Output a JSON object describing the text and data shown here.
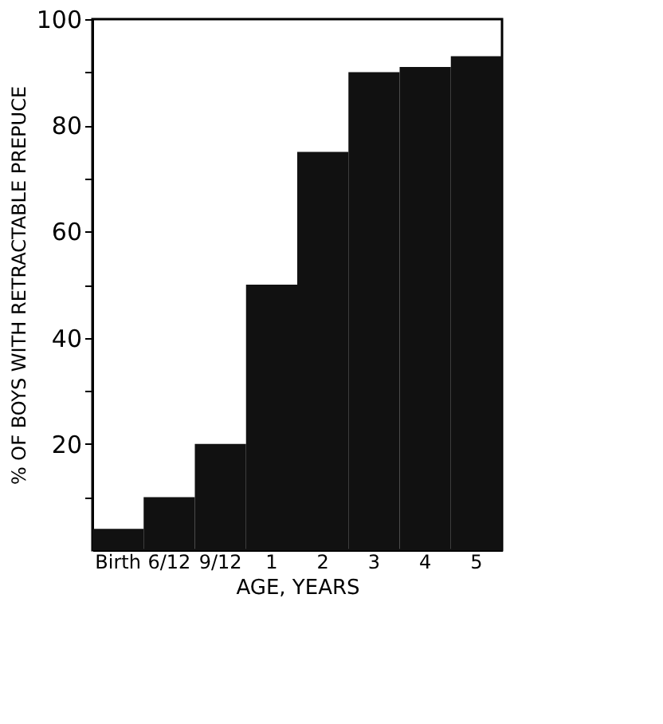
{
  "chart_data": {
    "type": "bar",
    "xlabel": "AGE, YEARS",
    "ylabel": "% OF BOYS WITH RETRACTABLE PREPUCE",
    "categories": [
      "Birth",
      "6/12",
      "9/12",
      "1",
      "2",
      "3",
      "4",
      "5"
    ],
    "values": [
      4,
      10,
      20,
      50,
      75,
      90,
      91,
      93
    ],
    "color": "#111111",
    "ylim": [
      0,
      100
    ],
    "yticks": [
      {
        "value": 10,
        "label": null
      },
      20,
      {
        "value": 30,
        "label": null
      },
      40,
      {
        "value": 50,
        "label": null
      },
      60,
      {
        "value": 70,
        "label": null
      },
      80,
      {
        "value": 90,
        "label": null
      },
      100
    ],
    "grid": false
  }
}
